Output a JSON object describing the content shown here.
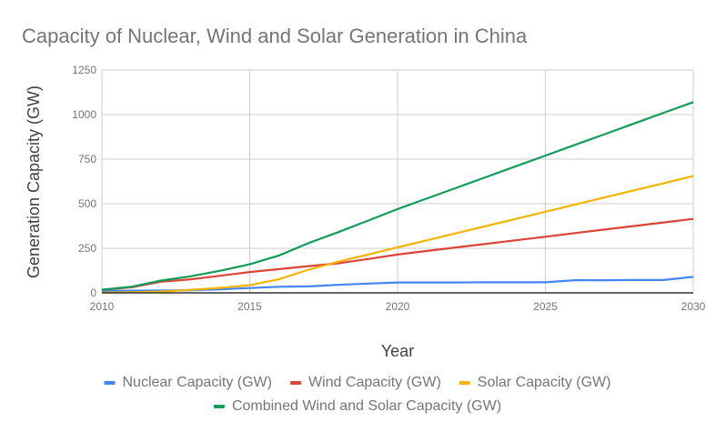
{
  "chart_data": {
    "type": "line",
    "title": "Capacity of Nuclear, Wind and Solar Generation in China",
    "xlabel": "Year",
    "ylabel": "Generation Capacity (GW)",
    "xlim": [
      2010,
      2030
    ],
    "ylim": [
      0,
      1250
    ],
    "x_ticks": [
      "2010",
      "2015",
      "2020",
      "2025",
      "2030"
    ],
    "y_ticks": [
      "0",
      "250",
      "500",
      "750",
      "1000",
      "1250"
    ],
    "grid": true,
    "legend_position": "bottom",
    "x": [
      2010,
      2011,
      2012,
      2013,
      2014,
      2015,
      2016,
      2017,
      2018,
      2019,
      2020,
      2021,
      2022,
      2023,
      2024,
      2025,
      2026,
      2027,
      2028,
      2029,
      2030
    ],
    "series": [
      {
        "name": "Nuclear Capacity (GW)",
        "color": "#4285f4",
        "values": [
          11,
          12,
          13,
          15,
          20,
          27,
          34,
          36,
          45,
          52,
          58,
          58,
          58,
          59,
          59,
          59,
          71,
          71,
          72,
          72,
          90
        ]
      },
      {
        "name": "Wind Capacity (GW)",
        "color": "#db4437",
        "values": [
          17,
          31,
          62,
          76,
          96,
          117,
          133,
          150,
          166,
          190,
          215,
          235,
          255,
          275,
          295,
          315,
          335,
          355,
          375,
          395,
          415
        ]
      },
      {
        "name": "Solar Capacity (GW)",
        "color": "#f4b400",
        "values": [
          1,
          3,
          7,
          17,
          28,
          43,
          77,
          130,
          175,
          215,
          255,
          295,
          335,
          375,
          415,
          455,
          495,
          535,
          575,
          615,
          655
        ]
      },
      {
        "name": "Combined Wind and Solar Capacity (GW)",
        "color": "#0f9d58",
        "values": [
          18,
          34,
          69,
          93,
          124,
          160,
          210,
          280,
          341,
          405,
          470,
          530,
          590,
          650,
          710,
          770,
          830,
          890,
          950,
          1010,
          1070
        ]
      }
    ]
  }
}
